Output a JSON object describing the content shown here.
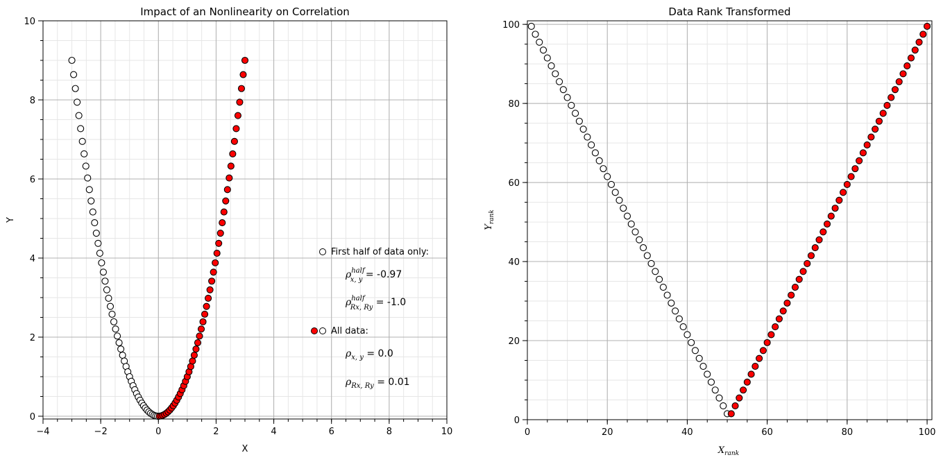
{
  "chart_data": [
    {
      "type": "scatter",
      "title": "Impact of an Nonlinearity on Correlation",
      "xlabel": "X",
      "ylabel": "Y",
      "xlim": [
        -4,
        10
      ],
      "ylim": [
        -0.07,
        10
      ],
      "xticks": [
        "−4",
        "−2",
        "0",
        "2",
        "4",
        "6",
        "8",
        "10"
      ],
      "xtick_values": [
        -4,
        -2,
        0,
        2,
        4,
        6,
        8,
        10
      ],
      "yticks": [
        "0",
        "2",
        "4",
        "6",
        "8",
        "10"
      ],
      "ytick_values": [
        0,
        2,
        4,
        6,
        8,
        10
      ],
      "grid": true,
      "data": {
        "n": 100,
        "x_min": -3,
        "x_max": 3,
        "relation": "y = x^2",
        "first_half_color": "#ffffff",
        "second_half_color": "#ff0000"
      },
      "legend": {
        "placement": "center-right",
        "first_half_label": "First half of data only:",
        "rho_half_xy": "= -0.97",
        "rho_half_rank": "= -1.0",
        "all_label": "All data:",
        "rho_xy": "= 0.0",
        "rho_rank": "= 0.01"
      }
    },
    {
      "type": "scatter",
      "title": "Data Rank Transformed",
      "xlabel": "X_rank",
      "ylabel": "Y_rank",
      "xlim": [
        0,
        101.2
      ],
      "ylim": [
        0,
        100.9
      ],
      "xticks": [
        "0",
        "20",
        "40",
        "60",
        "80",
        "100"
      ],
      "xtick_values": [
        0,
        20,
        40,
        60,
        80,
        100
      ],
      "yticks": [
        "0",
        "20",
        "40",
        "60",
        "80",
        "100"
      ],
      "ytick_values": [
        0,
        20,
        40,
        60,
        80,
        100
      ],
      "grid": true,
      "data": {
        "n": 100,
        "x_rank": "1..100",
        "y_rank": "average rank of x^2 (ties)"
      }
    }
  ]
}
